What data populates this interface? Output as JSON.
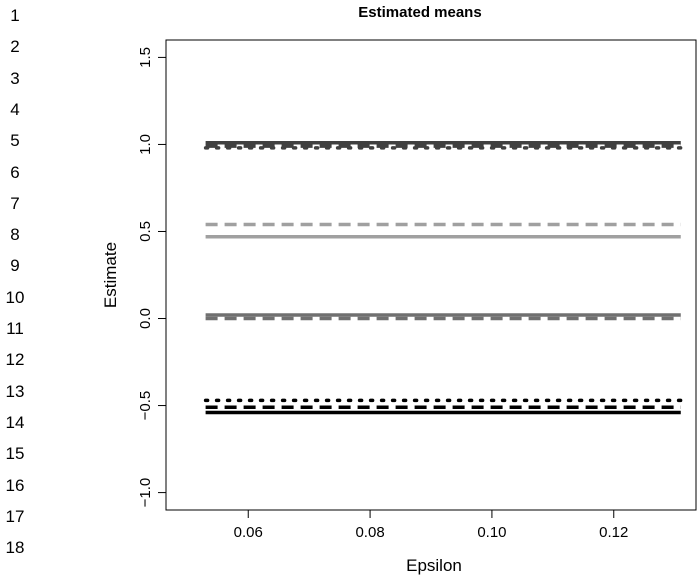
{
  "line_numbers": [
    "1",
    "2",
    "3",
    "4",
    "5",
    "6",
    "7",
    "8",
    "9",
    "10",
    "11",
    "12",
    "13",
    "14",
    "15",
    "16",
    "17",
    "18"
  ],
  "chart_data": {
    "type": "line",
    "title": "Estimated means",
    "xlabel": "Epsilon",
    "ylabel": "Estimate",
    "xlim": [
      0.0465,
      0.1335
    ],
    "ylim": [
      -1.1,
      1.6
    ],
    "x_ticks": [
      0.06,
      0.08,
      0.1,
      0.12
    ],
    "x_tick_labels": [
      "0.06",
      "0.08",
      "0.10",
      "0.12"
    ],
    "y_ticks": [
      -1.0,
      -0.5,
      0.0,
      0.5,
      1.0,
      1.5
    ],
    "y_tick_labels": [
      "−1.0",
      "−0.5",
      "0.0",
      "0.5",
      "1.0",
      "1.5"
    ],
    "grid": false,
    "x": [
      0.053,
      0.131
    ],
    "series": [
      {
        "values": [
          1.01,
          1.01
        ],
        "color": "#404040",
        "style": "solid"
      },
      {
        "values": [
          0.99,
          0.99
        ],
        "color": "#404040",
        "style": "dashed"
      },
      {
        "values": [
          0.98,
          0.98
        ],
        "color": "#404040",
        "style": "dotted"
      },
      {
        "values": [
          0.54,
          0.54
        ],
        "color": "#a0a0a0",
        "style": "dashed"
      },
      {
        "values": [
          0.47,
          0.47
        ],
        "color": "#a0a0a0",
        "style": "solid"
      },
      {
        "values": [
          0.02,
          0.02
        ],
        "color": "#707070",
        "style": "solid"
      },
      {
        "values": [
          0.0,
          0.0
        ],
        "color": "#707070",
        "style": "dashed"
      },
      {
        "values": [
          -0.47,
          -0.47
        ],
        "color": "#000000",
        "style": "dotted"
      },
      {
        "values": [
          -0.51,
          -0.51
        ],
        "color": "#000000",
        "style": "dashed"
      },
      {
        "values": [
          -0.54,
          -0.54
        ],
        "color": "#000000",
        "style": "solid"
      }
    ]
  }
}
